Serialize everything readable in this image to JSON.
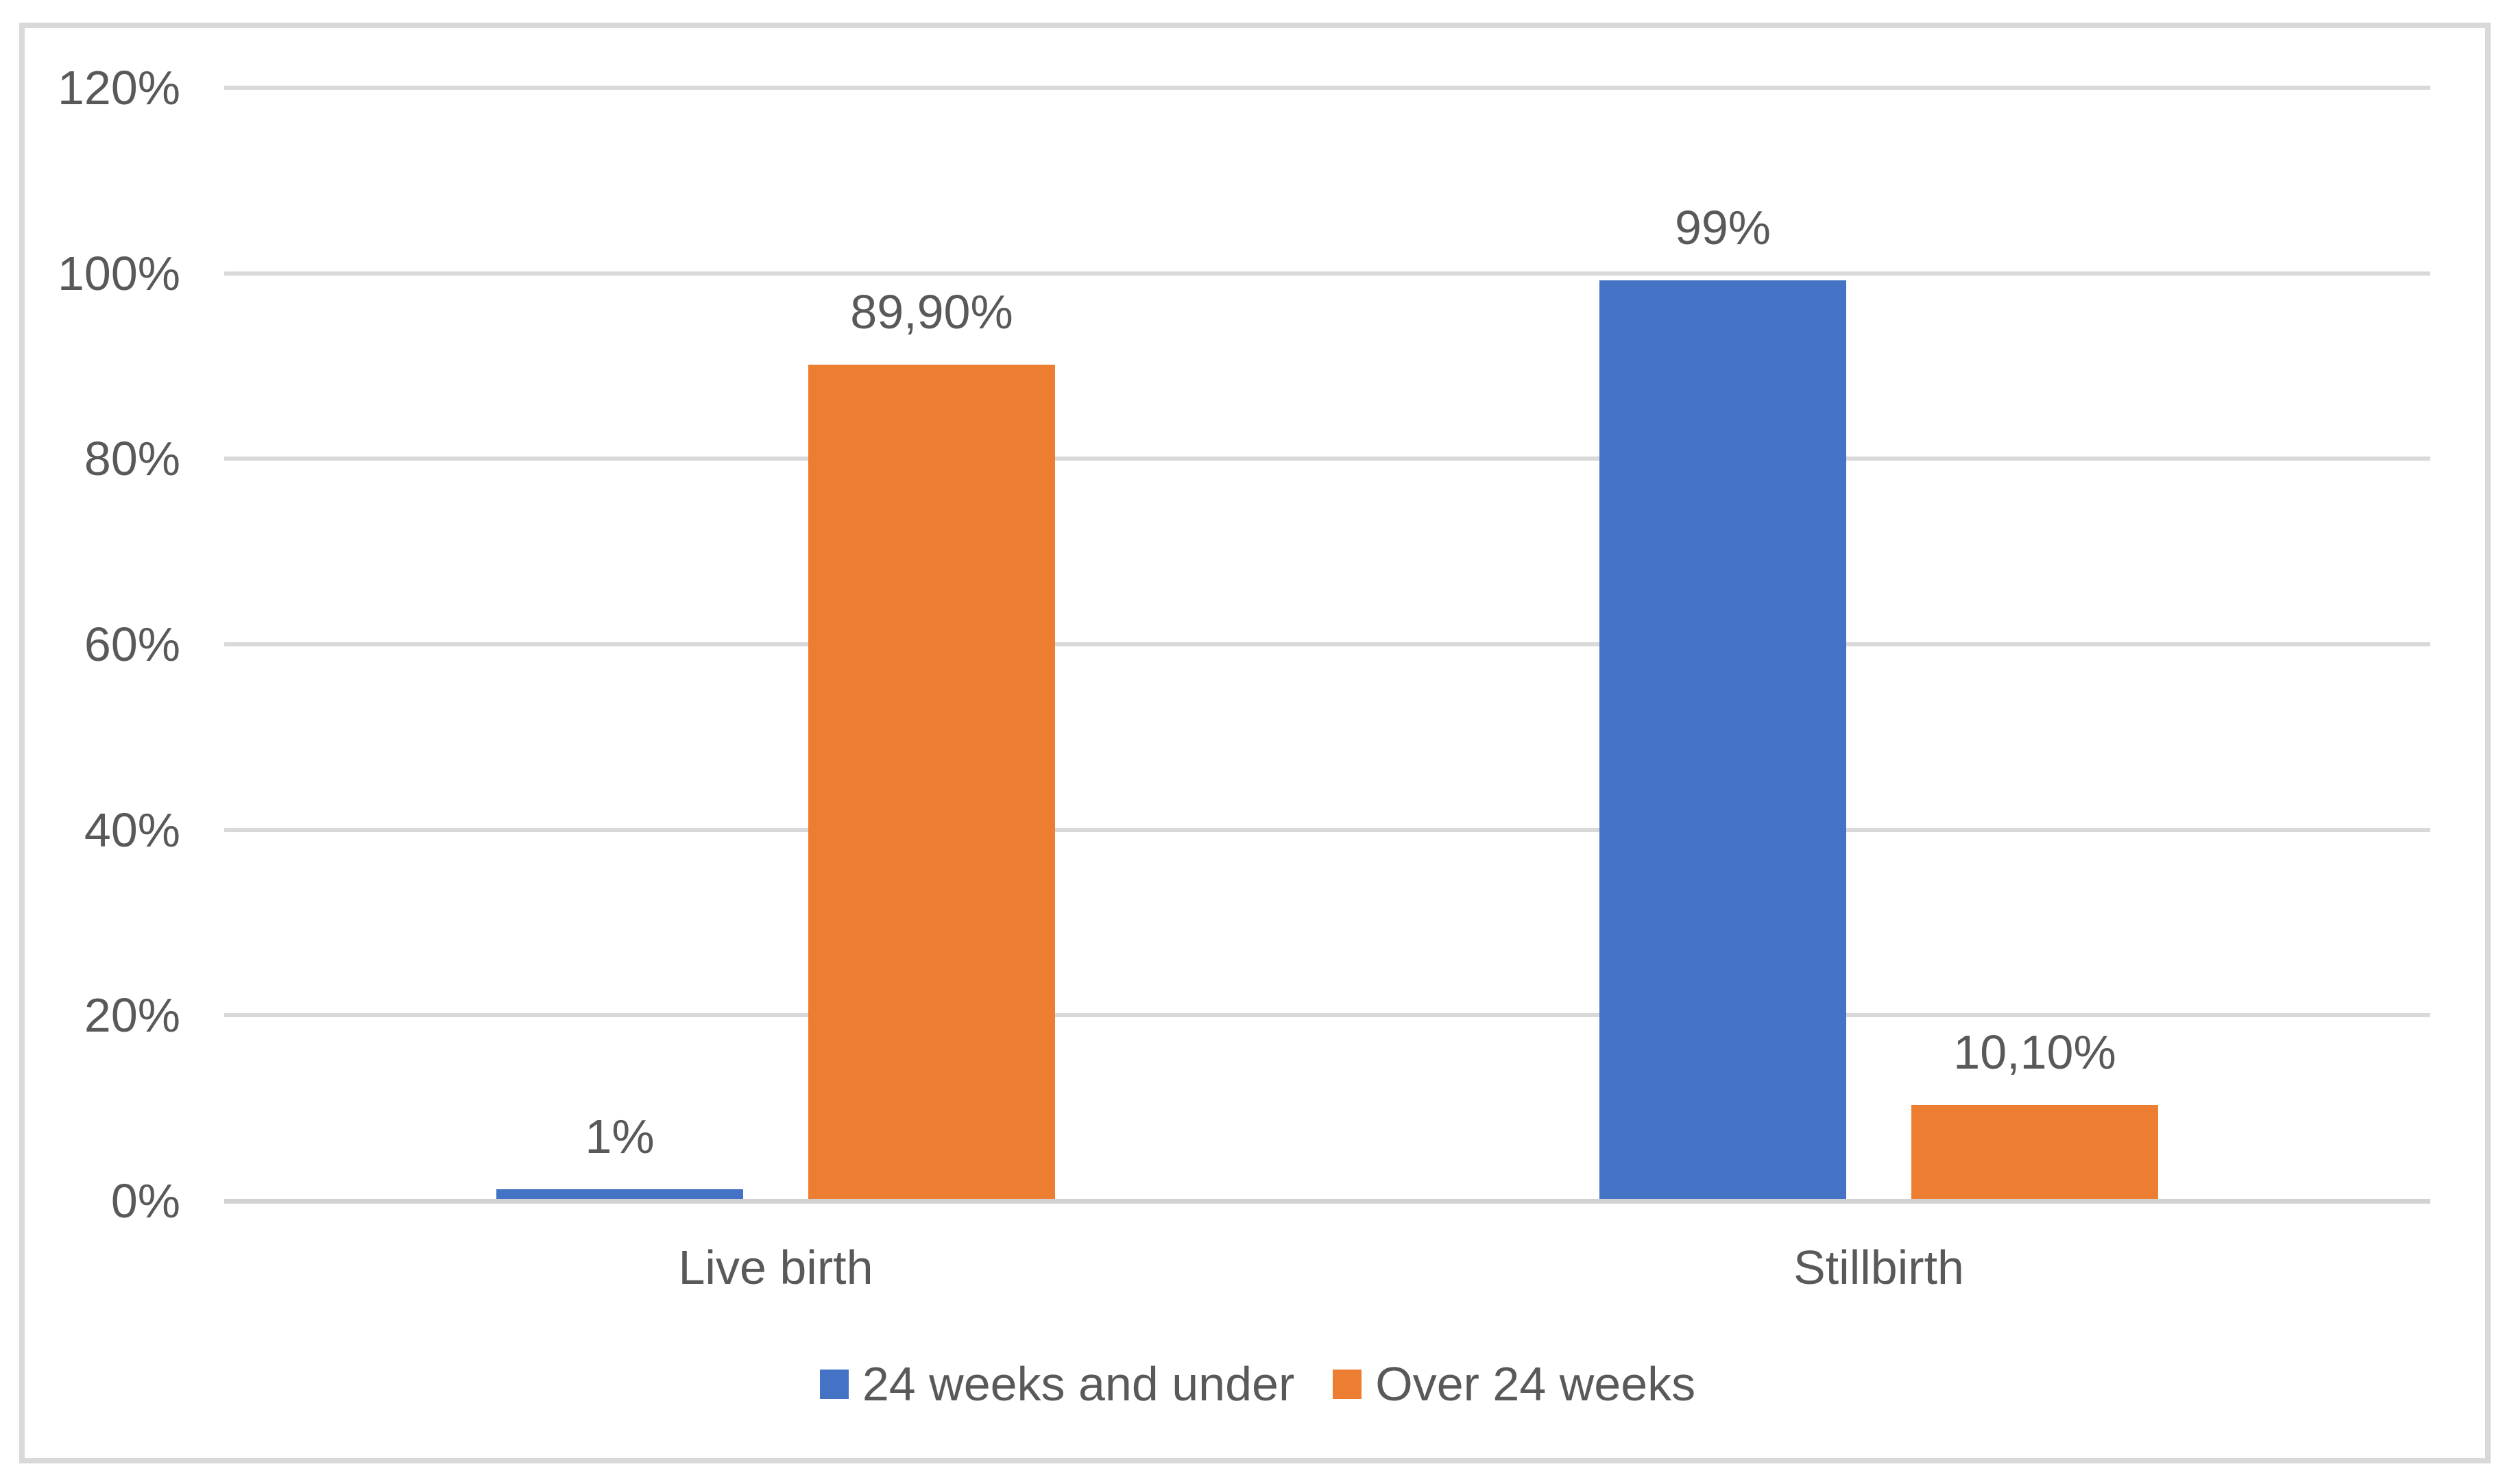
{
  "chart_data": {
    "type": "bar",
    "categories": [
      "Live birth",
      "Stillbirth"
    ],
    "series": [
      {
        "name": "24 weeks and under",
        "color": "#4472C4",
        "values": [
          1,
          99
        ],
        "labels": [
          "1%",
          "99%"
        ]
      },
      {
        "name": "Over 24 weeks",
        "color": "#ED7D31",
        "values": [
          89.9,
          10.1
        ],
        "labels": [
          "89,90%",
          "10,10%"
        ]
      }
    ],
    "title": "",
    "xlabel": "",
    "ylabel": "",
    "ylim": [
      0,
      120
    ],
    "ytick_values": [
      0,
      20,
      40,
      60,
      80,
      100,
      120
    ],
    "ytick_labels": [
      "0%",
      "20%",
      "40%",
      "60%",
      "80%",
      "100%",
      "120%"
    ],
    "grid": true,
    "legend_position": "bottom"
  },
  "colors": {
    "background": "#FFFFFF",
    "frame_border": "#D9D9D9",
    "gridline": "#D9D9D9",
    "axis_line": "#D2D2D2",
    "text": "#595959",
    "series_blue": "#4472C4",
    "series_orange": "#ED7D31"
  }
}
